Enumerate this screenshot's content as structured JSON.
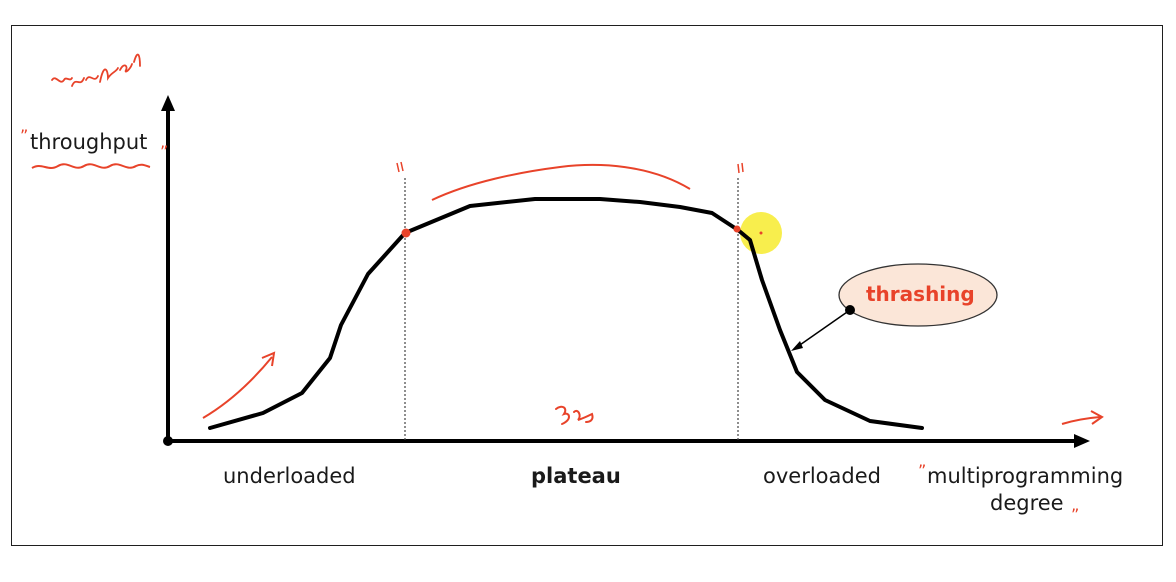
{
  "diagram": {
    "y_axis_label": "throughput",
    "x_axis_label_line1": "multiprogramming",
    "x_axis_label_line2": "degree",
    "regions": {
      "left": "underloaded",
      "middle": "plateau",
      "right": "overloaded"
    },
    "callout": "thrashing"
  },
  "annotations": {
    "handwritten_top": "sys prod",
    "handwritten_bottom": "3c",
    "quote_marks": "”"
  },
  "colors": {
    "curve": "#000000",
    "ink": "#e8432a",
    "highlight": "#f7ec3a",
    "callout_fill": "#fbe6d8"
  }
}
